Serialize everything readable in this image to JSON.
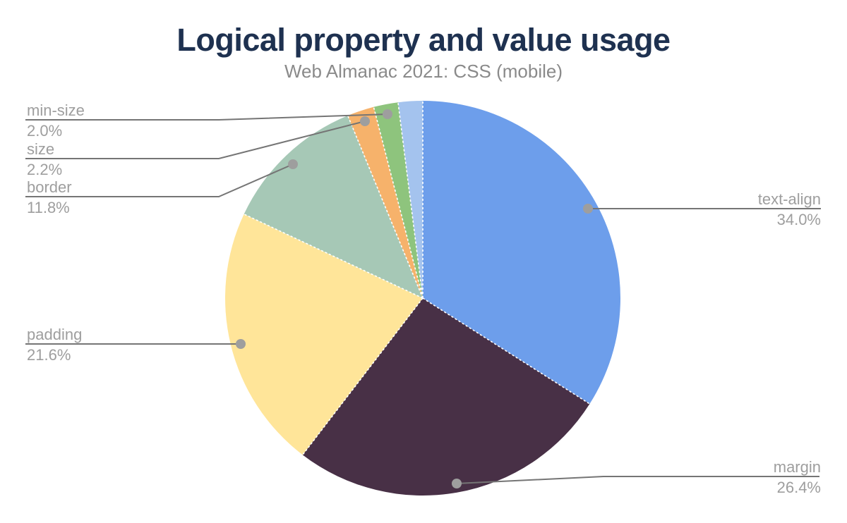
{
  "chart_data": {
    "type": "pie",
    "title": "Logical property and value usage",
    "subtitle": "Web Almanac 2021: CSS (mobile)",
    "unit": "%",
    "direction": "clockwise",
    "start_angle_deg": 0,
    "legend": "none",
    "labels_style": "outside callouts with leader lines and dots",
    "slices": [
      {
        "label": "text-align",
        "value": 34.0,
        "display": "34.0%",
        "color": "#6d9eeb",
        "callout_side": "right"
      },
      {
        "label": "margin",
        "value": 26.4,
        "display": "26.4%",
        "color": "#483046",
        "callout_side": "right"
      },
      {
        "label": "padding",
        "value": 21.6,
        "display": "21.6%",
        "color": "#ffe599",
        "callout_side": "left"
      },
      {
        "label": "border",
        "value": 11.8,
        "display": "11.8%",
        "color": "#a6c8b6",
        "callout_side": "left"
      },
      {
        "label": "size",
        "value": 2.2,
        "display": "2.2%",
        "color": "#f6b26b",
        "callout_side": "left"
      },
      {
        "label": "min-size",
        "value": 2.0,
        "display": "2.0%",
        "color": "#8ec47d",
        "callout_side": "left"
      },
      {
        "label": "",
        "value": 2.0,
        "display": "",
        "color": "#a4c3ee",
        "callout_side": "none"
      }
    ]
  },
  "colors": {
    "background": "#ffffff",
    "title": "#1e3150",
    "subtitle": "#8a8a8a",
    "callout_text": "#9e9e9e",
    "leader_line": "#757575",
    "leader_dot": "#9e9e9e",
    "slice_divider": "#ffffff"
  }
}
